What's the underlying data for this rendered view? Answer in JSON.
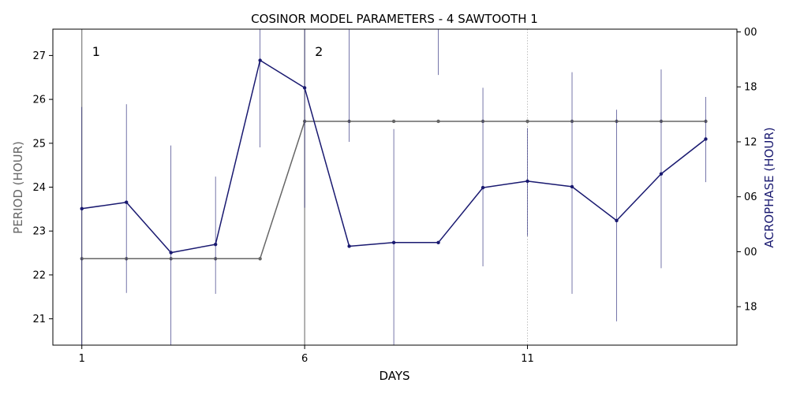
{
  "chart_data": {
    "type": "line",
    "title": "COSINOR MODEL PARAMETERS - 4 SAWTOOTH 1",
    "xlabel": "DAYS",
    "ylabel_left": "PERIOD (HOUR)",
    "ylabel_right": "ACROPHASE (HOUR)",
    "xlim": [
      0.35,
      15.7
    ],
    "x_ticks": [
      1,
      6,
      11
    ],
    "x_tick_labels": [
      "1",
      "6",
      "11"
    ],
    "y_left_lim": [
      20.4,
      27.6
    ],
    "y_left_ticks": [
      21,
      22,
      23,
      24,
      25,
      26,
      27
    ],
    "y_left_tick_labels": [
      "21",
      "22",
      "23",
      "24",
      "25",
      "26",
      "27"
    ],
    "y_right_lim": [
      -10.2,
      24.3
    ],
    "y_right_ticks": [
      -6,
      0,
      6,
      12,
      18,
      24
    ],
    "y_right_tick_labels": [
      "18",
      "00",
      "06",
      "12",
      "18",
      "00",
      "06"
    ],
    "y_right_tick_values": [
      -6,
      0,
      6,
      12,
      18,
      24,
      30
    ],
    "segment_markers": [
      {
        "x": 1,
        "label": "1"
      },
      {
        "x": 6,
        "label": "2"
      }
    ],
    "vertical_gridline_x": 11,
    "series": [
      {
        "axis": "left",
        "color": "#666666",
        "x": [
          1,
          2,
          3,
          4,
          5,
          6,
          7,
          8,
          9,
          10,
          11,
          12,
          13,
          14,
          15
        ],
        "values": [
          22.37,
          22.37,
          22.37,
          22.37,
          22.37,
          25.5,
          25.5,
          25.5,
          25.5,
          25.5,
          25.5,
          25.5,
          25.5,
          25.5,
          25.5
        ],
        "error_low": [
          20.4,
          null,
          null,
          null,
          null,
          20.4,
          null,
          null,
          null,
          null,
          null,
          null,
          null,
          null,
          null
        ],
        "error_high": [
          27.6,
          null,
          null,
          null,
          null,
          27.6,
          null,
          null,
          null,
          null,
          null,
          null,
          null,
          null,
          null
        ]
      },
      {
        "axis": "right",
        "color": "#191970",
        "x": [
          1,
          2,
          3,
          4,
          5,
          6,
          7,
          8,
          9,
          10,
          11,
          12,
          13,
          14,
          15
        ],
        "values": [
          4.7,
          5.4,
          -0.1,
          0.8,
          20.9,
          17.9,
          0.6,
          1.0,
          1.0,
          7.0,
          7.7,
          7.1,
          3.4,
          8.5,
          12.3
        ],
        "error_low": [
          -10.2,
          -4.5,
          -11.1,
          -4.6,
          11.4,
          4.8,
          12.0,
          -11.3,
          19.3,
          -1.6,
          1.7,
          -4.6,
          -7.6,
          -1.8,
          7.6
        ],
        "error_high": [
          15.8,
          16.1,
          11.6,
          8.2,
          30.9,
          30.3,
          36.5,
          13.4,
          31.7,
          17.9,
          13.5,
          19.6,
          15.5,
          19.9,
          16.9
        ]
      }
    ]
  }
}
